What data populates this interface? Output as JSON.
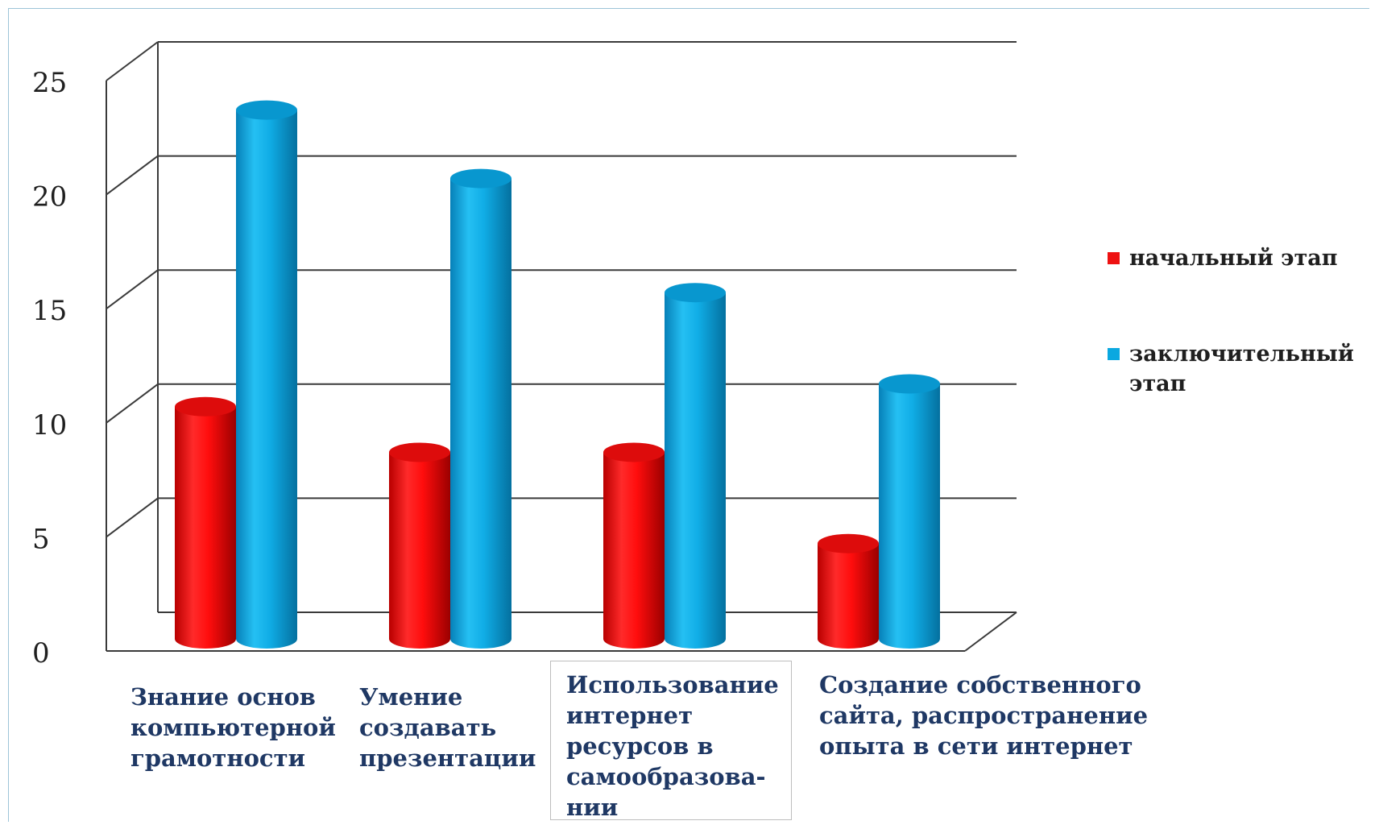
{
  "chart_data": {
    "type": "bar",
    "style": "3d-cylinder",
    "categories": [
      "Знание основ\nкомпьютерной\nграмотности",
      "Умение\nсоздавать\nпрезентации",
      "Использование\nинтернет\nресурсов в\nсамообразова-\nнии",
      "Создание собственного\nсайта, распространение\nопыта в сети интернет"
    ],
    "series": [
      {
        "name": "начальный этап",
        "color": "#ee1111",
        "values": [
          10,
          8,
          8,
          4
        ]
      },
      {
        "name": "заключительный\nэтап",
        "color": "#0aa8e0",
        "values": [
          23,
          20,
          15,
          11
        ]
      }
    ],
    "ylim": [
      0,
      25
    ],
    "yticks": [
      0,
      5,
      10,
      15,
      20,
      25
    ],
    "grid": true,
    "legend_position": "right"
  }
}
